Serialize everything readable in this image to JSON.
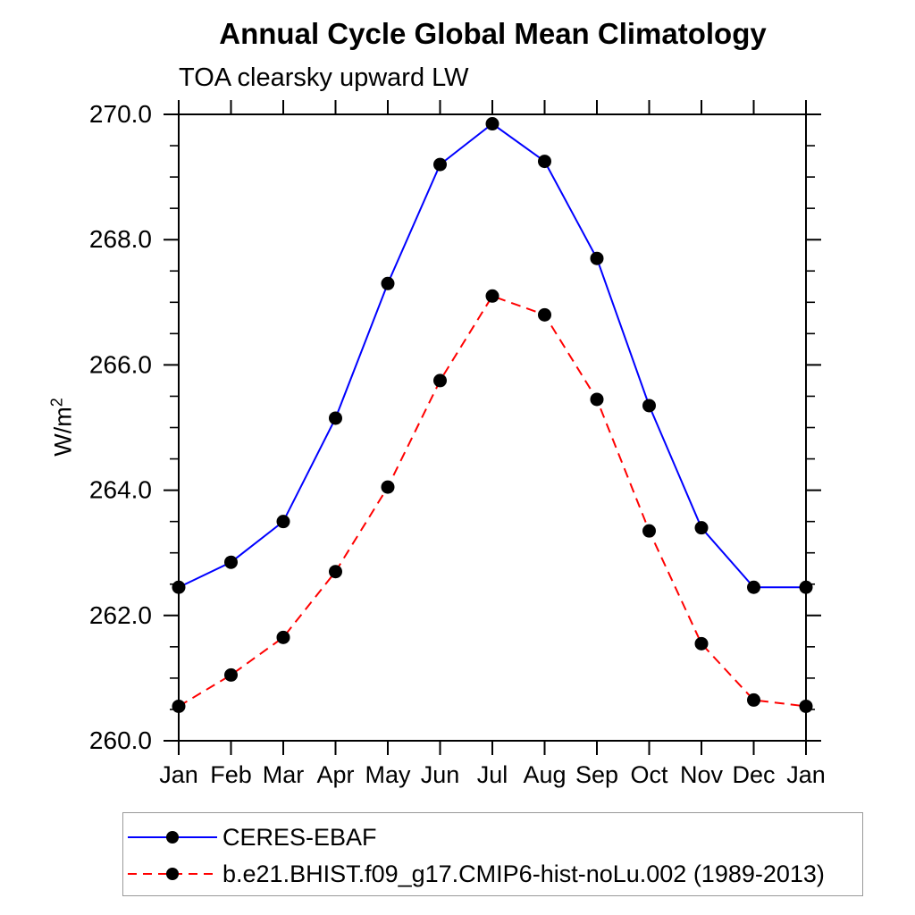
{
  "title": "Annual Cycle Global Mean Climatology",
  "subtitle": "TOA clearsky upward LW",
  "y_axis_label": {
    "base": "W/m",
    "sup": "2"
  },
  "colors": {
    "series1": "#0000ff",
    "series2": "#ff0000",
    "marker": "#000000",
    "axis": "#000000"
  },
  "legend": {
    "items": [
      {
        "label": "CERES-EBAF",
        "color": "#0000ff",
        "style": "solid"
      },
      {
        "label": "b.e21.BHIST.f09_g17.CMIP6-hist-noLu.002 (1989-2013)",
        "color": "#ff0000",
        "style": "dashed"
      }
    ]
  },
  "chart_data": {
    "type": "line",
    "title": "Annual Cycle Global Mean Climatology",
    "subtitle": "TOA clearsky upward LW",
    "ylabel": "W/m²",
    "xlabel": "",
    "categories": [
      "Jan",
      "Feb",
      "Mar",
      "Apr",
      "May",
      "Jun",
      "Jul",
      "Aug",
      "Sep",
      "Oct",
      "Nov",
      "Dec",
      "Jan"
    ],
    "series": [
      {
        "name": "CERES-EBAF",
        "color": "#0000ff",
        "style": "solid",
        "values": [
          262.45,
          262.85,
          263.5,
          265.15,
          267.3,
          269.2,
          269.85,
          269.25,
          267.7,
          265.35,
          263.4,
          262.45,
          262.45
        ]
      },
      {
        "name": "b.e21.BHIST.f09_g17.CMIP6-hist-noLu.002 (1989-2013)",
        "color": "#ff0000",
        "style": "dashed",
        "values": [
          260.55,
          261.05,
          261.65,
          262.7,
          264.05,
          265.75,
          267.1,
          266.8,
          265.45,
          263.35,
          261.55,
          260.65,
          260.55
        ]
      }
    ],
    "ylim": [
      260.0,
      270.0
    ],
    "y_major_ticks": [
      260,
      262,
      264,
      266,
      268,
      270
    ],
    "y_tick_labels": [
      "260.0",
      "262.0",
      "264.0",
      "266.0",
      "268.0",
      "270.0"
    ],
    "y_minor_step": 0.5,
    "marker": "filled-circle",
    "grid": false,
    "legend_position": "bottom"
  }
}
